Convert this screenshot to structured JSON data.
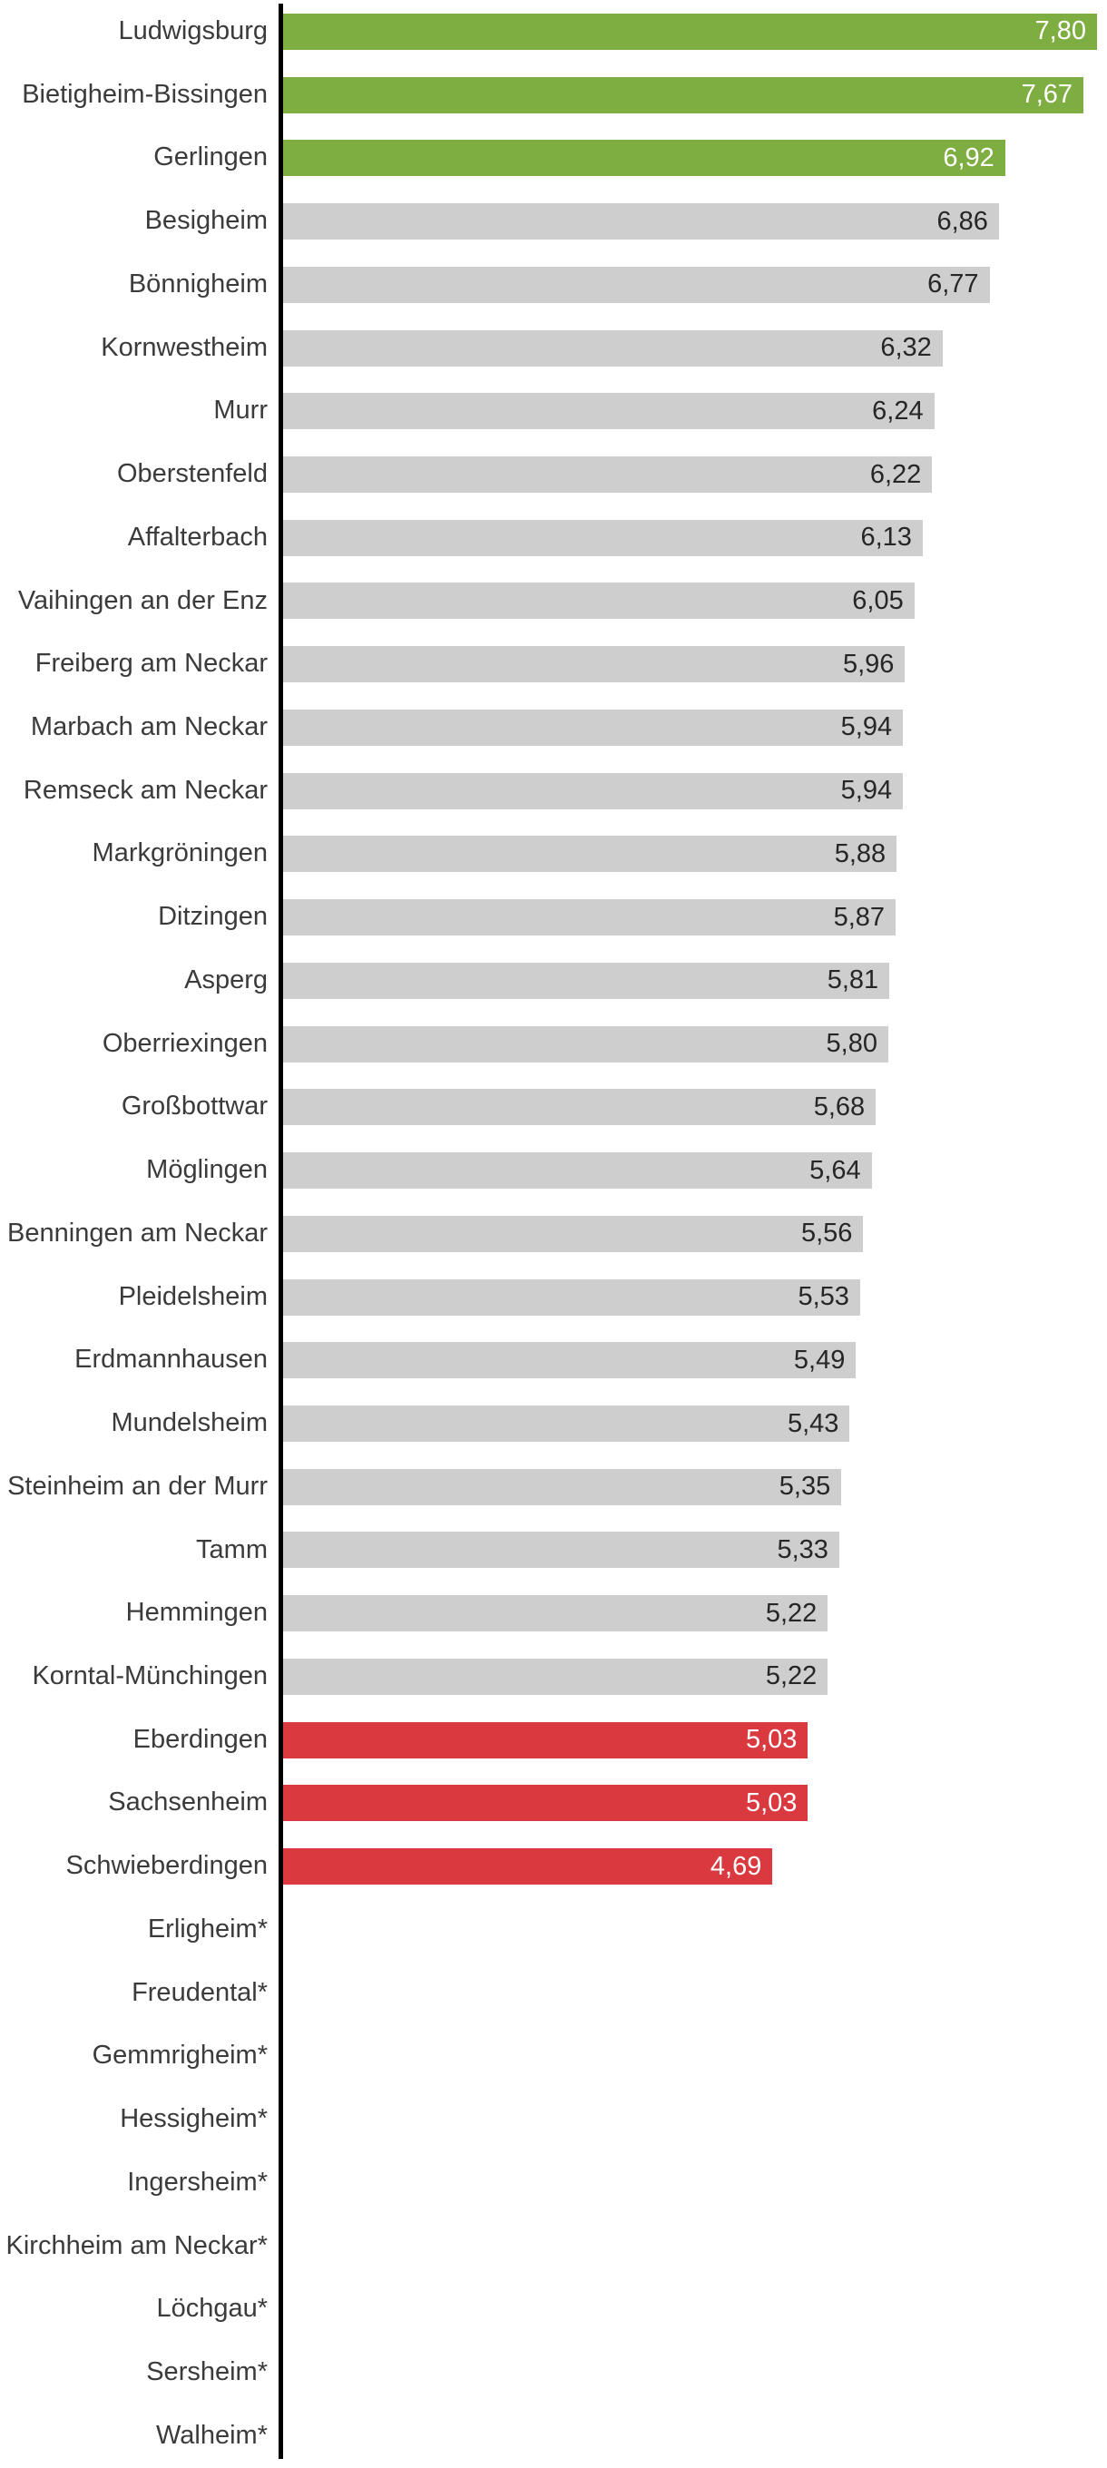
{
  "chart_data": {
    "type": "bar",
    "orientation": "horizontal",
    "title": "",
    "xlabel": "",
    "ylabel": "",
    "xlim": [
      0,
      7.9
    ],
    "grid": false,
    "legend": null,
    "decimal_separator": ",",
    "axis_color": "#000000",
    "label_color": "#3b3b3b",
    "colors": {
      "green": {
        "bar": "#7ead41",
        "text": "#ffffff"
      },
      "gray": {
        "bar": "#cecece",
        "text": "#262626"
      },
      "red": {
        "bar": "#d9393f",
        "text": "#ffffff"
      }
    },
    "rows": [
      {
        "label": "Ludwigsburg",
        "value": 7.8,
        "display": "7,80",
        "color": "green"
      },
      {
        "label": "Bietigheim-Bissingen",
        "value": 7.67,
        "display": "7,67",
        "color": "green"
      },
      {
        "label": "Gerlingen",
        "value": 6.92,
        "display": "6,92",
        "color": "green"
      },
      {
        "label": "Besigheim",
        "value": 6.86,
        "display": "6,86",
        "color": "gray"
      },
      {
        "label": "Bönnigheim",
        "value": 6.77,
        "display": "6,77",
        "color": "gray"
      },
      {
        "label": "Kornwestheim",
        "value": 6.32,
        "display": "6,32",
        "color": "gray"
      },
      {
        "label": "Murr",
        "value": 6.24,
        "display": "6,24",
        "color": "gray"
      },
      {
        "label": "Oberstenfeld",
        "value": 6.22,
        "display": "6,22",
        "color": "gray"
      },
      {
        "label": "Affalterbach",
        "value": 6.13,
        "display": "6,13",
        "color": "gray"
      },
      {
        "label": "Vaihingen an der Enz",
        "value": 6.05,
        "display": "6,05",
        "color": "gray"
      },
      {
        "label": "Freiberg am Neckar",
        "value": 5.96,
        "display": "5,96",
        "color": "gray"
      },
      {
        "label": "Marbach am Neckar",
        "value": 5.94,
        "display": "5,94",
        "color": "gray"
      },
      {
        "label": "Remseck am Neckar",
        "value": 5.94,
        "display": "5,94",
        "color": "gray"
      },
      {
        "label": "Markgröningen",
        "value": 5.88,
        "display": "5,88",
        "color": "gray"
      },
      {
        "label": "Ditzingen",
        "value": 5.87,
        "display": "5,87",
        "color": "gray"
      },
      {
        "label": "Asperg",
        "value": 5.81,
        "display": "5,81",
        "color": "gray"
      },
      {
        "label": "Oberriexingen",
        "value": 5.8,
        "display": "5,80",
        "color": "gray"
      },
      {
        "label": "Großbottwar",
        "value": 5.68,
        "display": "5,68",
        "color": "gray"
      },
      {
        "label": "Möglingen",
        "value": 5.64,
        "display": "5,64",
        "color": "gray"
      },
      {
        "label": "Benningen am Neckar",
        "value": 5.56,
        "display": "5,56",
        "color": "gray"
      },
      {
        "label": "Pleidelsheim",
        "value": 5.53,
        "display": "5,53",
        "color": "gray"
      },
      {
        "label": "Erdmannhausen",
        "value": 5.49,
        "display": "5,49",
        "color": "gray"
      },
      {
        "label": "Mundelsheim",
        "value": 5.43,
        "display": "5,43",
        "color": "gray"
      },
      {
        "label": "Steinheim an der Murr",
        "value": 5.35,
        "display": "5,35",
        "color": "gray"
      },
      {
        "label": "Tamm",
        "value": 5.33,
        "display": "5,33",
        "color": "gray"
      },
      {
        "label": "Hemmingen",
        "value": 5.22,
        "display": "5,22",
        "color": "gray"
      },
      {
        "label": "Korntal-Münchingen",
        "value": 5.22,
        "display": "5,22",
        "color": "gray"
      },
      {
        "label": "Eberdingen",
        "value": 5.03,
        "display": "5,03",
        "color": "red"
      },
      {
        "label": "Sachsenheim",
        "value": 5.03,
        "display": "5,03",
        "color": "red"
      },
      {
        "label": "Schwieberdingen",
        "value": 4.69,
        "display": "4,69",
        "color": "red"
      },
      {
        "label": "Erligheim*",
        "value": null,
        "display": "",
        "color": "none"
      },
      {
        "label": "Freudental*",
        "value": null,
        "display": "",
        "color": "none"
      },
      {
        "label": "Gemmrigheim*",
        "value": null,
        "display": "",
        "color": "none"
      },
      {
        "label": "Hessigheim*",
        "value": null,
        "display": "",
        "color": "none"
      },
      {
        "label": "Ingersheim*",
        "value": null,
        "display": "",
        "color": "none"
      },
      {
        "label": "Kirchheim am Neckar*",
        "value": null,
        "display": "",
        "color": "none"
      },
      {
        "label": "Löchgau*",
        "value": null,
        "display": "",
        "color": "none"
      },
      {
        "label": "Sersheim*",
        "value": null,
        "display": "",
        "color": "none"
      },
      {
        "label": "Walheim*",
        "value": null,
        "display": "",
        "color": "none"
      }
    ]
  }
}
